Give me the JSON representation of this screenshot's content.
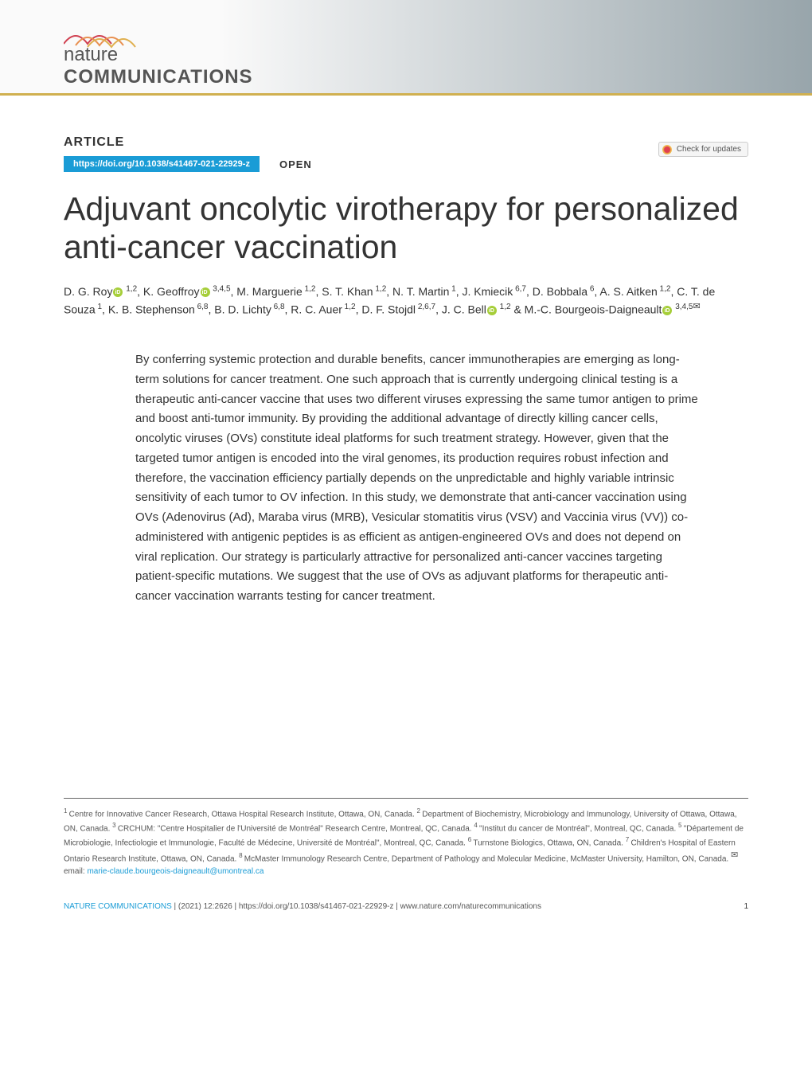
{
  "header": {
    "journal_name_1": "nature",
    "journal_name_2": "COMMUNICATIONS",
    "logo_wave_colors": [
      "#d04050",
      "#e89050",
      "#e0b050"
    ],
    "gradient_left": "#fafafa",
    "gradient_right": "#98a5ab",
    "border_color": "#d0b050"
  },
  "article": {
    "label": "ARTICLE",
    "doi": "https://doi.org/10.1038/s41467-021-22929-z",
    "doi_bg": "#1a9cd6",
    "open": "OPEN",
    "check_updates": "Check for updates",
    "title": "Adjuvant oncolytic virotherapy for personalized anti-cancer vaccination"
  },
  "authors": {
    "list": [
      {
        "name": "D. G. Roy",
        "orcid": true,
        "aff": "1,2"
      },
      {
        "name": "K. Geoffroy",
        "orcid": true,
        "aff": "3,4,5"
      },
      {
        "name": "M. Marguerie",
        "aff": "1,2"
      },
      {
        "name": "S. T. Khan",
        "aff": "1,2"
      },
      {
        "name": "N. T. Martin",
        "aff": "1"
      },
      {
        "name": "J. Kmiecik",
        "aff": "6,7"
      },
      {
        "name": "D. Bobbala",
        "aff": "6"
      },
      {
        "name": "A. S. Aitken",
        "aff": "1,2"
      },
      {
        "name": "C. T. de Souza",
        "aff": "1"
      },
      {
        "name": "K. B. Stephenson",
        "aff": "6,8"
      },
      {
        "name": "B. D. Lichty",
        "aff": "6,8"
      },
      {
        "name": "R. C. Auer",
        "aff": "1,2"
      },
      {
        "name": "D. F. Stojdl",
        "aff": "2,6,7"
      },
      {
        "name": "J. C. Bell",
        "orcid": true,
        "aff": "1,2",
        "amp": true
      },
      {
        "name": "M.-C. Bourgeois-Daigneault",
        "orcid": true,
        "aff": "3,4,5",
        "corr": true
      }
    ]
  },
  "abstract": "By conferring systemic protection and durable benefits, cancer immunotherapies are emerging as long-term solutions for cancer treatment. One such approach that is currently undergoing clinical testing is a therapeutic anti-cancer vaccine that uses two different viruses expressing the same tumor antigen to prime and boost anti-tumor immunity. By providing the additional advantage of directly killing cancer cells, oncolytic viruses (OVs) constitute ideal platforms for such treatment strategy. However, given that the targeted tumor antigen is encoded into the viral genomes, its production requires robust infection and therefore, the vaccination efficiency partially depends on the unpredictable and highly variable intrinsic sensitivity of each tumor to OV infection. In this study, we demonstrate that anti-cancer vaccination using OVs (Adenovirus (Ad), Maraba virus (MRB), Vesicular stomatitis virus (VSV) and Vaccinia virus (VV)) co-administered with antigenic peptides is as efficient as antigen-engineered OVs and does not depend on viral replication. Our strategy is particularly attractive for personalized anti-cancer vaccines targeting patient-specific mutations. We suggest that the use of OVs as adjuvant platforms for therapeutic anti-cancer vaccination warrants testing for cancer treatment.",
  "affiliations": {
    "text_parts": [
      {
        "sup": "1",
        "text": "Centre for Innovative Cancer Research, Ottawa Hospital Research Institute, Ottawa, ON, Canada. "
      },
      {
        "sup": "2",
        "text": "Department of Biochemistry, Microbiology and Immunology, University of Ottawa, Ottawa, ON, Canada. "
      },
      {
        "sup": "3",
        "text": "CRCHUM: \"Centre Hospitalier de l'Université de Montréal\" Research Centre, Montreal, QC, Canada. "
      },
      {
        "sup": "4",
        "text": "\"Institut du cancer de Montréal\", Montreal, QC, Canada. "
      },
      {
        "sup": "5",
        "text": "\"Département de Microbiologie, Infectiologie et Immunologie, Faculté de Médecine, Université de Montréal\", Montreal, QC, Canada. "
      },
      {
        "sup": "6",
        "text": "Turnstone Biologics, Ottawa, ON, Canada. "
      },
      {
        "sup": "7",
        "text": "Children's Hospital of Eastern Ontario Research Institute, Ottawa, ON, Canada. "
      },
      {
        "sup": "8",
        "text": "McMaster Immunology Research Centre, Department of Pathology and Molecular Medicine, McMaster University, Hamilton, ON, Canada. "
      }
    ],
    "email_label": "email: ",
    "email": "marie-claude.bourgeois-daigneault@umontreal.ca"
  },
  "footer": {
    "journal": "NATURE COMMUNICATIONS",
    "citation": "(2021) 12:2626 | https://doi.org/10.1038/s41467-021-22929-z | www.nature.com/naturecommunications",
    "page": "1"
  },
  "colors": {
    "accent": "#1a9cd6",
    "orcid": "#a6ce39",
    "text": "#333333",
    "text_light": "#555555",
    "bg": "#ffffff"
  },
  "typography": {
    "title_fontsize": 41,
    "title_weight": 300,
    "abstract_fontsize": 15,
    "authors_fontsize": 14,
    "affiliations_fontsize": 10,
    "footer_fontsize": 10
  }
}
